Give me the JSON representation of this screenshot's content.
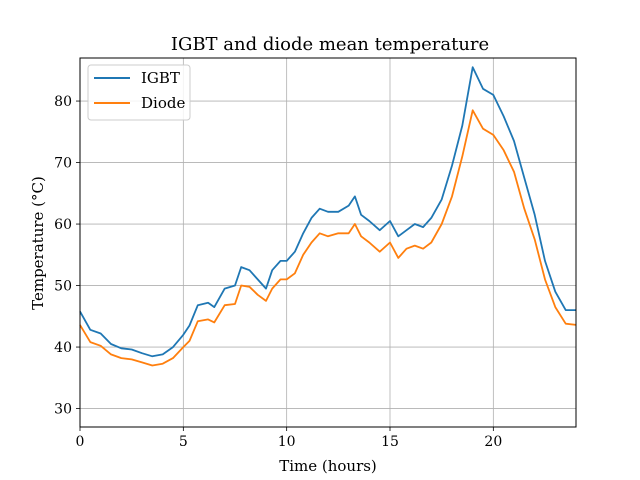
{
  "chart_data": {
    "type": "line",
    "title": "IGBT and diode mean temperature",
    "xlabel": "Time (hours)",
    "ylabel": "Temperature (°C)",
    "xlim": [
      0,
      24
    ],
    "ylim": [
      27,
      87
    ],
    "xticks": [
      0,
      5,
      10,
      15,
      20
    ],
    "yticks": [
      30,
      40,
      50,
      60,
      70,
      80
    ],
    "grid": true,
    "legend_position": "top-left",
    "series": [
      {
        "name": "IGBT",
        "color": "#1f77b4",
        "x": [
          0,
          0.5,
          1,
          1.5,
          2,
          2.5,
          3,
          3.5,
          4,
          4.5,
          5,
          5.3,
          5.7,
          6.2,
          6.5,
          7,
          7.5,
          7.8,
          8.2,
          8.6,
          9,
          9.3,
          9.7,
          10,
          10.4,
          10.8,
          11.2,
          11.6,
          12,
          12.5,
          13,
          13.3,
          13.6,
          14,
          14.5,
          15,
          15.4,
          15.8,
          16.2,
          16.6,
          17,
          17.5,
          18,
          18.5,
          19,
          19.5,
          20,
          20.5,
          21,
          21.5,
          22,
          22.5,
          23,
          23.5,
          24
        ],
        "values": [
          45.8,
          42.8,
          42.2,
          40.5,
          39.8,
          39.6,
          39.0,
          38.5,
          38.8,
          40.0,
          42.0,
          43.5,
          46.8,
          47.2,
          46.5,
          49.5,
          50.0,
          53.0,
          52.5,
          51.0,
          49.5,
          52.5,
          54.0,
          54.0,
          55.5,
          58.5,
          61.0,
          62.5,
          62.0,
          62.0,
          63.0,
          64.5,
          61.5,
          60.5,
          59.0,
          60.5,
          58.0,
          59.0,
          60.0,
          59.5,
          61.0,
          64.0,
          69.5,
          76.0,
          85.5,
          82.0,
          81.0,
          77.5,
          73.5,
          67.5,
          61.5,
          54.0,
          49.0,
          46.0,
          46.0
        ]
      },
      {
        "name": "Diode",
        "color": "#ff7f0e",
        "x": [
          0,
          0.5,
          1,
          1.5,
          2,
          2.5,
          3,
          3.5,
          4,
          4.5,
          5,
          5.3,
          5.7,
          6.2,
          6.5,
          7,
          7.5,
          7.8,
          8.2,
          8.6,
          9,
          9.3,
          9.7,
          10,
          10.4,
          10.8,
          11.2,
          11.6,
          12,
          12.5,
          13,
          13.3,
          13.6,
          14,
          14.5,
          15,
          15.4,
          15.8,
          16.2,
          16.6,
          17,
          17.5,
          18,
          18.5,
          19,
          19.5,
          20,
          20.5,
          21,
          21.5,
          22,
          22.5,
          23,
          23.5,
          24
        ],
        "values": [
          43.6,
          40.8,
          40.2,
          38.8,
          38.2,
          38.0,
          37.5,
          37.0,
          37.3,
          38.2,
          40.0,
          41.0,
          44.2,
          44.5,
          44.0,
          46.8,
          47.0,
          50.0,
          49.8,
          48.5,
          47.5,
          49.5,
          51.0,
          51.0,
          52.0,
          55.0,
          57.0,
          58.5,
          58.0,
          58.5,
          58.5,
          60.0,
          58.0,
          57.0,
          55.5,
          57.0,
          54.5,
          56.0,
          56.5,
          56.0,
          57.0,
          60.0,
          64.5,
          71.0,
          78.5,
          75.5,
          74.5,
          72.0,
          68.5,
          62.5,
          57.5,
          51.0,
          46.5,
          43.8,
          43.6
        ]
      }
    ]
  }
}
